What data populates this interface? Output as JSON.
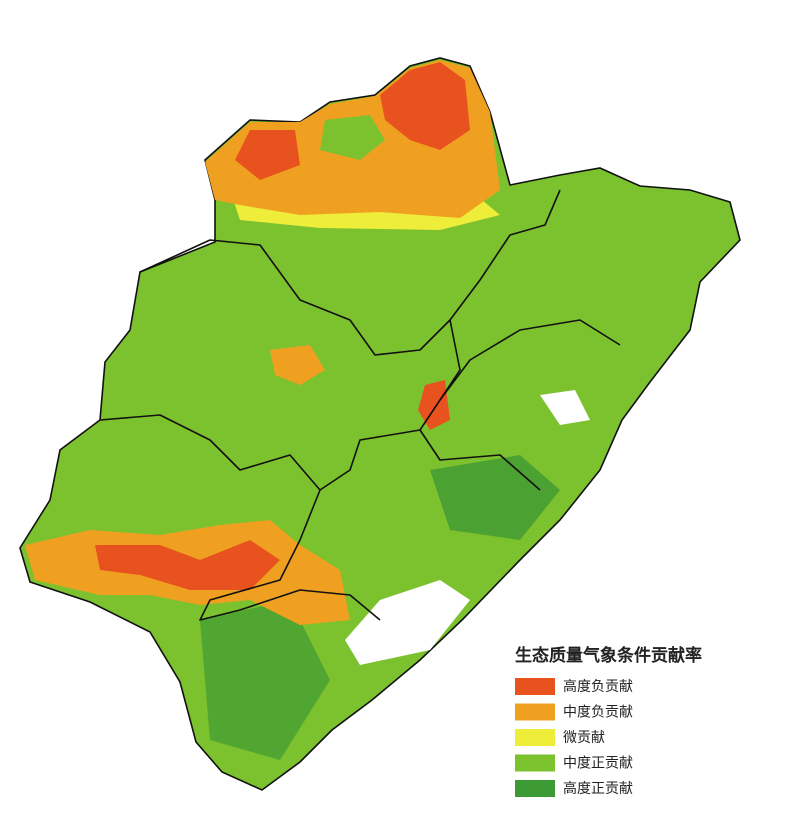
{
  "legend": {
    "title": "生态质量气象条件贡献率",
    "items": [
      {
        "name": "高度负贡献",
        "color": "#e8521e"
      },
      {
        "name": "中度负贡献",
        "color": "#f0a020"
      },
      {
        "name": "微贡献",
        "color": "#eded3a"
      },
      {
        "name": "中度正贡献",
        "color": "#7cc12e"
      },
      {
        "name": "高度正贡献",
        "color": "#3e9a35"
      }
    ]
  }
}
